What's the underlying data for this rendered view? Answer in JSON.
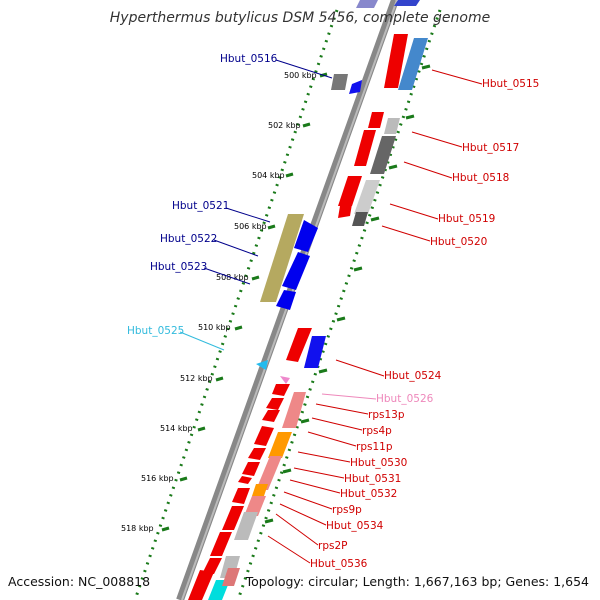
{
  "title": "Hyperthermus butylicus DSM 5456, complete genome",
  "accession": "Accession: NC_008818",
  "topology": "Topology: circular; Length: 1,667,163 bp; Genes: 1,654",
  "colors": {
    "forward_label": "#d00000",
    "reverse_label": "#00008b",
    "cyan_label": "#33bbdd",
    "pink_label": "#ee88bb",
    "backbone": "#777777",
    "tick_mark": "#1a7a1a"
  },
  "ticks": [
    "500 kbp",
    "502 kbp",
    "504 kbp",
    "506 kbp",
    "508 kbp",
    "510 kbp",
    "512 kbp",
    "514 kbp",
    "516 kbp",
    "518 kbp"
  ],
  "gene_labels": [
    {
      "id": "Hbut_0516",
      "color": "reverse"
    },
    {
      "id": "Hbut_0515",
      "color": "forward"
    },
    {
      "id": "Hbut_0517",
      "color": "forward"
    },
    {
      "id": "Hbut_0518",
      "color": "forward"
    },
    {
      "id": "Hbut_0519",
      "color": "forward"
    },
    {
      "id": "Hbut_0520",
      "color": "forward"
    },
    {
      "id": "Hbut_0521",
      "color": "reverse"
    },
    {
      "id": "Hbut_0522",
      "color": "reverse"
    },
    {
      "id": "Hbut_0523",
      "color": "reverse"
    },
    {
      "id": "Hbut_0525",
      "color": "cyan"
    },
    {
      "id": "Hbut_0524",
      "color": "forward"
    },
    {
      "id": "Hbut_0526",
      "color": "pink"
    },
    {
      "id": "rps13p",
      "color": "forward"
    },
    {
      "id": "rps4p",
      "color": "forward"
    },
    {
      "id": "rps11p",
      "color": "forward"
    },
    {
      "id": "Hbut_0530",
      "color": "forward"
    },
    {
      "id": "Hbut_0531",
      "color": "forward"
    },
    {
      "id": "Hbut_0532",
      "color": "forward"
    },
    {
      "id": "rps9p",
      "color": "forward"
    },
    {
      "id": "Hbut_0534",
      "color": "forward"
    },
    {
      "id": "rps2P",
      "color": "forward"
    },
    {
      "id": "Hbut_0536",
      "color": "forward"
    }
  ]
}
